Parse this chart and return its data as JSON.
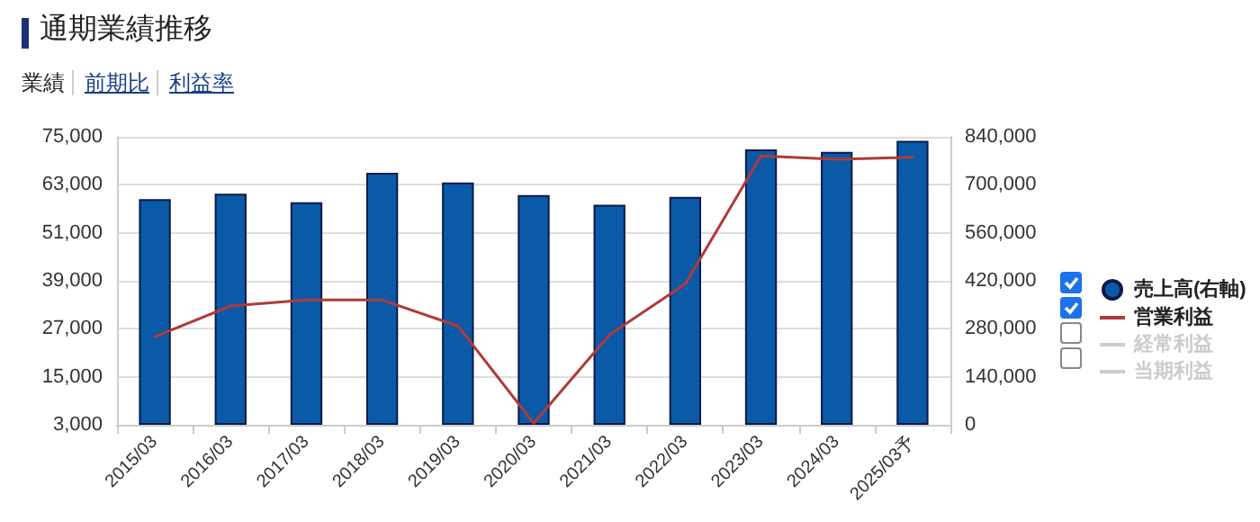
{
  "chart_data": {
    "type": "bar",
    "title": "通期業績推移",
    "annotations": [
      "業績",
      "前期比",
      "利益率"
    ],
    "categories": [
      "2015/03",
      "2016/03",
      "2017/03",
      "2018/03",
      "2019/03",
      "2020/03",
      "2021/03",
      "2022/03",
      "2023/03",
      "2024/03",
      "2025/03予"
    ],
    "series": [
      {
        "name": "売上高(右軸)",
        "axis": "y2",
        "color": "#0a5aa8",
        "values": [
          658000,
          674000,
          649000,
          735000,
          707000,
          670000,
          642000,
          665000,
          803000,
          796000,
          828000
        ]
      },
      {
        "name": "営業利益",
        "type": "line",
        "axis": "y",
        "color": "#b03a3a",
        "values": [
          25000,
          32700,
          34200,
          34200,
          27700,
          3400,
          25500,
          38200,
          70200,
          69400,
          69900
        ]
      },
      {
        "name": "経常利益",
        "type": "line",
        "axis": "y",
        "color": "#cccccc",
        "values": [
          null,
          null,
          null,
          null,
          null,
          null,
          null,
          null,
          null,
          null,
          null
        ]
      },
      {
        "name": "当期利益",
        "type": "line",
        "axis": "y",
        "color": "#cccccc",
        "values": [
          null,
          null,
          null,
          null,
          null,
          null,
          null,
          null,
          null,
          null,
          null
        ]
      }
    ],
    "ylim": [
      3000,
      75000
    ],
    "yticks": [
      {
        "value": 3000,
        "label": "3,000"
      },
      {
        "value": 15000,
        "label": "15,000"
      },
      {
        "value": 27000,
        "label": "27,000"
      },
      {
        "value": 39000,
        "label": "39,000"
      },
      {
        "value": 51000,
        "label": "51,000"
      },
      {
        "value": 63000,
        "label": "63,000"
      },
      {
        "value": 75000,
        "label": "75,000"
      }
    ],
    "y2lim": [
      0,
      840000
    ],
    "y2ticks": [
      0,
      {
        "value": 140000,
        "label": "140,000"
      },
      {
        "value": 280000,
        "label": "280,000"
      },
      {
        "value": 420000,
        "label": "420,000"
      },
      {
        "value": 560000,
        "label": "560,000"
      },
      {
        "value": 700000,
        "label": "700,000"
      },
      {
        "value": 840000,
        "label": "840,000"
      }
    ],
    "grid": "y",
    "legend": "right",
    "marker": "none",
    "line_style": "solid"
  }
}
